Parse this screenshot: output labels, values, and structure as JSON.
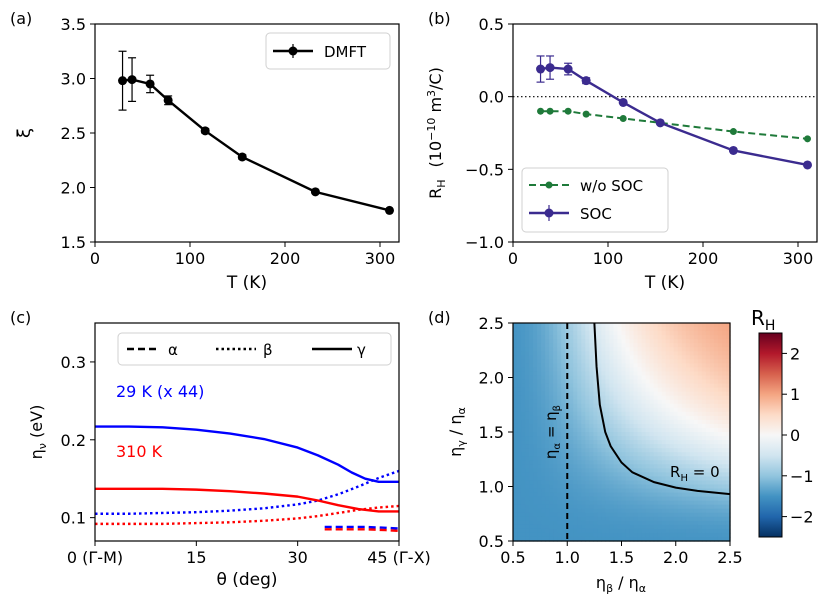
{
  "chart_data": [
    {
      "panel": "(a)",
      "type": "line",
      "xlabel": "T  (K)",
      "ylabel": "ξ",
      "xlim": [
        0,
        320
      ],
      "ylim": [
        1.5,
        3.5
      ],
      "xticks": [
        "0",
        "100",
        "200",
        "300"
      ],
      "yticks": [
        "1.5",
        "2.0",
        "2.5",
        "3.0",
        "3.5"
      ],
      "legend": [
        "DMFT"
      ],
      "legend_position": "top-right",
      "series": [
        {
          "name": "DMFT",
          "color": "#000000",
          "x": [
            29,
            39,
            58,
            77,
            116,
            155,
            232,
            310
          ],
          "y": [
            2.98,
            2.99,
            2.95,
            2.8,
            2.52,
            2.28,
            1.96,
            1.79
          ],
          "err": [
            0.27,
            0.2,
            0.08,
            0.04,
            0.02,
            0.02,
            0.01,
            0.01
          ]
        }
      ]
    },
    {
      "panel": "(b)",
      "type": "line",
      "xlabel": "T  (K)",
      "ylabel": "R_H  (10^-10  m^3/C)",
      "ylabel_parts": {
        "main": "R",
        "sub": "H",
        "unit_open": "(10",
        "exp": "−10",
        "unit_mid": "  m",
        "exp2": "3",
        "unit_close": "/C)"
      },
      "xlim": [
        0,
        320
      ],
      "ylim": [
        -1.0,
        0.5
      ],
      "xticks": [
        "0",
        "100",
        "200",
        "300"
      ],
      "yticks": [
        "−1.0",
        "−0.5",
        "0.0",
        "0.5"
      ],
      "zero_line": true,
      "legend": [
        "w/o SOC",
        "SOC"
      ],
      "legend_position": "bottom-left",
      "series": [
        {
          "name": "w/o SOC",
          "color": "#1f7a3a",
          "dashed": true,
          "x": [
            29,
            39,
            58,
            77,
            116,
            155,
            232,
            310
          ],
          "y": [
            -0.1,
            -0.1,
            -0.1,
            -0.12,
            -0.15,
            -0.18,
            -0.24,
            -0.29
          ],
          "err": [
            0.01,
            0.01,
            0.01,
            0.01,
            0.01,
            0.01,
            0.01,
            0.01
          ]
        },
        {
          "name": "SOC",
          "color": "#3b2b8f",
          "dashed": false,
          "x": [
            29,
            39,
            58,
            77,
            116,
            155,
            232,
            310
          ],
          "y": [
            0.19,
            0.2,
            0.19,
            0.11,
            -0.04,
            -0.18,
            -0.37,
            -0.47
          ],
          "err": [
            0.09,
            0.08,
            0.04,
            0.02,
            0.01,
            0.01,
            0.01,
            0.01
          ]
        }
      ]
    },
    {
      "panel": "(c)",
      "type": "line",
      "xlabel": "θ (deg)",
      "ylabel": "η_ν (eV)",
      "ylabel_parts": {
        "main": "η",
        "sub": "ν",
        "unit": " (eV)"
      },
      "xlim": [
        0,
        45
      ],
      "ylim": [
        0.07,
        0.35
      ],
      "xticks": [
        "0 (Γ-M)",
        "15",
        "30",
        "45 (Γ-X)"
      ],
      "yticks": [
        "0.1",
        "0.2",
        "0.3"
      ],
      "legend": [
        "α",
        "β",
        "γ"
      ],
      "annotations": [
        {
          "text": "29 K (x 44)",
          "color": "#0000ff"
        },
        {
          "text": "310 K",
          "color": "#ff0000"
        }
      ],
      "series": [
        {
          "name": "γ 29 K",
          "band": "γ",
          "color": "#0000ff",
          "style": "solid",
          "x": [
            0,
            5,
            10,
            15,
            20,
            25,
            30,
            33,
            36,
            38,
            40,
            42,
            43,
            45
          ],
          "y": [
            0.217,
            0.217,
            0.216,
            0.213,
            0.208,
            0.201,
            0.19,
            0.18,
            0.168,
            0.158,
            0.15,
            0.146,
            0.146,
            0.146
          ]
        },
        {
          "name": "β 29 K",
          "band": "β",
          "color": "#0000ff",
          "style": "dotted",
          "x": [
            0,
            5,
            10,
            15,
            20,
            25,
            30,
            33,
            36,
            39,
            42,
            45
          ],
          "y": [
            0.105,
            0.105,
            0.106,
            0.107,
            0.109,
            0.112,
            0.117,
            0.122,
            0.13,
            0.14,
            0.151,
            0.16
          ]
        },
        {
          "name": "α 29 K",
          "band": "α",
          "color": "#0000ff",
          "style": "dashed",
          "x": [
            34,
            37,
            40,
            43,
            45
          ],
          "y": [
            0.088,
            0.088,
            0.088,
            0.087,
            0.086
          ]
        },
        {
          "name": "γ 310 K",
          "band": "γ",
          "color": "#ff0000",
          "style": "solid",
          "x": [
            0,
            5,
            10,
            15,
            20,
            25,
            30,
            33,
            36,
            39,
            42,
            45
          ],
          "y": [
            0.137,
            0.137,
            0.137,
            0.136,
            0.134,
            0.131,
            0.127,
            0.122,
            0.116,
            0.111,
            0.108,
            0.108
          ]
        },
        {
          "name": "β 310 K",
          "band": "β",
          "color": "#ff0000",
          "style": "dotted",
          "x": [
            0,
            5,
            10,
            15,
            20,
            25,
            30,
            33,
            36,
            39,
            42,
            45
          ],
          "y": [
            0.092,
            0.092,
            0.092,
            0.093,
            0.094,
            0.096,
            0.099,
            0.102,
            0.106,
            0.11,
            0.113,
            0.115
          ]
        },
        {
          "name": "α 310 K",
          "band": "α",
          "color": "#ff0000",
          "style": "dashed",
          "x": [
            34,
            37,
            40,
            43,
            45
          ],
          "y": [
            0.085,
            0.085,
            0.085,
            0.084,
            0.083
          ]
        }
      ]
    },
    {
      "panel": "(d)",
      "type": "heatmap",
      "xlabel": "η_β / η_α",
      "ylabel": "η_γ / η_α",
      "xlabel_parts": {
        "a": "η",
        "asub": "β",
        "mid": " / η",
        "bsub": "α"
      },
      "ylabel_parts": {
        "a": "η",
        "asub": "γ",
        "mid": " / η",
        "bsub": "α"
      },
      "xlim": [
        0.5,
        2.5
      ],
      "ylim": [
        0.5,
        2.5
      ],
      "xticks": [
        "0.5",
        "1.0",
        "1.5",
        "2.0",
        "2.5"
      ],
      "yticks": [
        "0.5",
        "1.0",
        "1.5",
        "2.0",
        "2.5"
      ],
      "colorbar": {
        "label": "R_H",
        "label_main": "R",
        "label_sub": "H",
        "range": [
          -2.5,
          2.5
        ],
        "ticks": [
          "−2",
          "−1",
          "0",
          "1",
          "2"
        ]
      },
      "colormap": "RdBu_r",
      "annotations": [
        {
          "text": "η_α = η_β",
          "parts": {
            "a": "η",
            "asub": "α",
            "mid": " = η",
            "bsub": "β"
          }
        },
        {
          "text": "R_H = 0",
          "parts": {
            "a": "R",
            "asub": "H",
            "mid": " = 0"
          }
        }
      ],
      "contour_zero": {
        "x": [
          1.25,
          1.27,
          1.3,
          1.35,
          1.4,
          1.5,
          1.6,
          1.8,
          2.0,
          2.2,
          2.5
        ],
        "y": [
          2.5,
          2.1,
          1.75,
          1.5,
          1.37,
          1.22,
          1.13,
          1.04,
          0.99,
          0.96,
          0.93
        ]
      },
      "vline_x": 1.0
    }
  ]
}
